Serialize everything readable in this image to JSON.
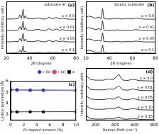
{
  "chart_data": [
    {
      "type": "line",
      "title": "(a)",
      "annotations": [
        {
          "text": "substrate #"
        }
      ],
      "x_label": "2θ (degree)",
      "y_label": "Intensity (arbitrary unit)",
      "x": [
        20,
        25,
        30,
        31.7,
        33,
        34.4,
        35.3,
        36.2,
        38,
        42,
        47.5,
        50,
        54,
        56.6,
        60,
        62.9,
        66,
        68,
        72,
        76,
        80
      ],
      "series": [
        {
          "name": "x = 0.0",
          "color": "#000000",
          "values": [
            3.05,
            3.05,
            3.08,
            3.4,
            3.1,
            3.9,
            3.1,
            3.35,
            3.08,
            3.06,
            3.16,
            3.06,
            3.05,
            3.22,
            3.05,
            3.2,
            3.05,
            3.13,
            3.05,
            3.04,
            3.04
          ]
        },
        {
          "name": "x = 0.01",
          "color": "#000000",
          "values": [
            2.05,
            2.05,
            2.08,
            2.38,
            2.1,
            2.85,
            2.1,
            2.32,
            2.08,
            2.06,
            2.15,
            2.06,
            2.05,
            2.2,
            2.05,
            2.18,
            2.05,
            2.12,
            2.05,
            2.04,
            2.04
          ]
        },
        {
          "name": "x = 0.05",
          "color": "#000000",
          "values": [
            1.05,
            1.05,
            1.08,
            1.35,
            1.1,
            1.8,
            1.1,
            1.3,
            1.08,
            1.06,
            1.14,
            1.06,
            1.05,
            1.18,
            1.05,
            1.16,
            1.05,
            1.12,
            1.05,
            1.04,
            1.04
          ]
        },
        {
          "name": "x = 0.1",
          "color": "#000000",
          "values": [
            0.05,
            0.05,
            0.08,
            0.3,
            0.1,
            0.7,
            0.1,
            0.25,
            0.08,
            0.06,
            0.12,
            0.06,
            0.05,
            0.15,
            0.05,
            0.14,
            0.05,
            0.1,
            0.05,
            0.04,
            0.04
          ]
        }
      ],
      "xlim": [
        20,
        80
      ],
      "xticks": [
        20,
        40,
        60,
        80
      ],
      "ylim": [
        0,
        4.6
      ],
      "tick_labels": "x",
      "grid": false,
      "legend": "inline",
      "marker": "none",
      "line_style": "solid"
    },
    {
      "type": "line",
      "title": "(b)",
      "annotations": [
        {
          "text": "Quartz substrate"
        }
      ],
      "x_label": "2θ (degree)",
      "y_label": "Intensity (arbitrary unit)",
      "x": [
        20,
        22,
        25,
        28,
        31.7,
        33,
        34.4,
        35.5,
        38,
        42,
        47.5,
        50,
        56.6,
        60,
        62.9,
        68,
        72,
        76,
        80
      ],
      "series": [
        {
          "name": "x = 0.0",
          "color": "#000000",
          "values": [
            3.2,
            3.3,
            3.25,
            3.12,
            3.22,
            3.08,
            3.95,
            3.08,
            3.06,
            3.05,
            3.12,
            3.05,
            3.09,
            3.05,
            3.15,
            3.06,
            3.04,
            3.04,
            3.04
          ]
        },
        {
          "name": "x = 0.01",
          "color": "#000000",
          "values": [
            2.2,
            2.3,
            2.25,
            2.12,
            2.2,
            2.08,
            2.9,
            2.08,
            2.06,
            2.05,
            2.1,
            2.05,
            2.08,
            2.05,
            2.13,
            2.05,
            2.04,
            2.04,
            2.04
          ]
        },
        {
          "name": "x = 0.05",
          "color": "#000000",
          "values": [
            1.2,
            1.3,
            1.25,
            1.12,
            1.18,
            1.08,
            1.85,
            1.08,
            1.06,
            1.05,
            1.1,
            1.05,
            1.07,
            1.05,
            1.12,
            1.05,
            1.04,
            1.04,
            1.04
          ]
        },
        {
          "name": "x = 0.1",
          "color": "#000000",
          "values": [
            0.2,
            0.3,
            0.25,
            0.12,
            0.15,
            0.08,
            0.75,
            0.08,
            0.06,
            0.05,
            0.08,
            0.05,
            0.06,
            0.05,
            0.1,
            0.05,
            0.04,
            0.04,
            0.04
          ]
        }
      ],
      "xlim": [
        20,
        80
      ],
      "xticks": [
        20,
        40,
        60,
        80
      ],
      "ylim": [
        0,
        4.6
      ],
      "tick_labels": "x",
      "grid": false,
      "legend": "inline",
      "marker": "none",
      "line_style": "solid"
    },
    {
      "type": "line",
      "title": "(c)",
      "x_label": "Fe dopant amount (%)",
      "y_label": "Lattice parameters (Å)",
      "x": [
        0,
        1,
        3,
        5,
        10
      ],
      "series": [
        {
          "name": "c (b)",
          "color": "#1f3fbf",
          "marker": "diamond",
          "line_style": "solid",
          "values": [
            5.21,
            5.2,
            5.19,
            5.19,
            5.18
          ]
        },
        {
          "name": "c (a)",
          "color": "#e0457b",
          "marker": "circle",
          "line_style": "solid",
          "values": [
            5.2,
            5.18,
            5.16,
            5.15,
            5.13
          ]
        },
        {
          "name": "a",
          "color": "#000000",
          "marker": "square",
          "line_style": "solid",
          "values": [
            3.25,
            3.25,
            3.26,
            3.26,
            3.27
          ]
        }
      ],
      "xlim": [
        0,
        10
      ],
      "xticks": [
        0,
        2,
        4,
        6,
        8,
        10
      ],
      "ylim": [
        2.5,
        6
      ],
      "yticks": [
        3,
        4,
        5,
        6
      ],
      "grid": false,
      "legend": "top-right"
    },
    {
      "type": "line",
      "title": "(d)",
      "x_label": "Raman Shift (cm⁻¹)",
      "y_label": "Intensity (arbitrary unit)",
      "x": [
        100,
        150,
        200,
        280,
        330,
        380,
        437,
        480,
        530,
        580,
        650,
        720,
        800
      ],
      "series": [
        {
          "name": "x = 0.0",
          "color": "#000000",
          "values": [
            4.65,
            4.2,
            4.15,
            4.15,
            4.27,
            4.2,
            4.75,
            4.15,
            4.12,
            4.25,
            4.1,
            4.08,
            4.06
          ]
        },
        {
          "name": "x = 0.01",
          "color": "#000000",
          "values": [
            3.6,
            3.2,
            3.15,
            3.15,
            3.25,
            3.2,
            3.55,
            3.15,
            3.12,
            3.25,
            3.1,
            3.08,
            3.06
          ]
        },
        {
          "name": "x = 0.05",
          "color": "#000000",
          "values": [
            2.55,
            2.2,
            2.15,
            2.14,
            2.24,
            2.19,
            2.45,
            2.14,
            2.12,
            2.25,
            2.1,
            2.08,
            2.06
          ]
        },
        {
          "name": "x = 0.10",
          "color": "#000000",
          "values": [
            1.55,
            1.2,
            1.15,
            1.14,
            1.22,
            1.18,
            1.4,
            1.14,
            1.12,
            1.24,
            1.1,
            1.08,
            1.06
          ]
        },
        {
          "name": "x = 0.15",
          "color": "#000000",
          "values": [
            0.5,
            0.18,
            0.14,
            0.13,
            0.2,
            0.17,
            0.35,
            0.14,
            0.12,
            0.22,
            0.1,
            0.08,
            0.06
          ]
        }
      ],
      "xlim": [
        100,
        800
      ],
      "xticks": [
        200,
        400,
        600,
        800
      ],
      "ylim": [
        0,
        5.4
      ],
      "tick_labels": "x",
      "grid": false,
      "legend": "inline",
      "marker": "none",
      "line_style": "solid"
    }
  ]
}
